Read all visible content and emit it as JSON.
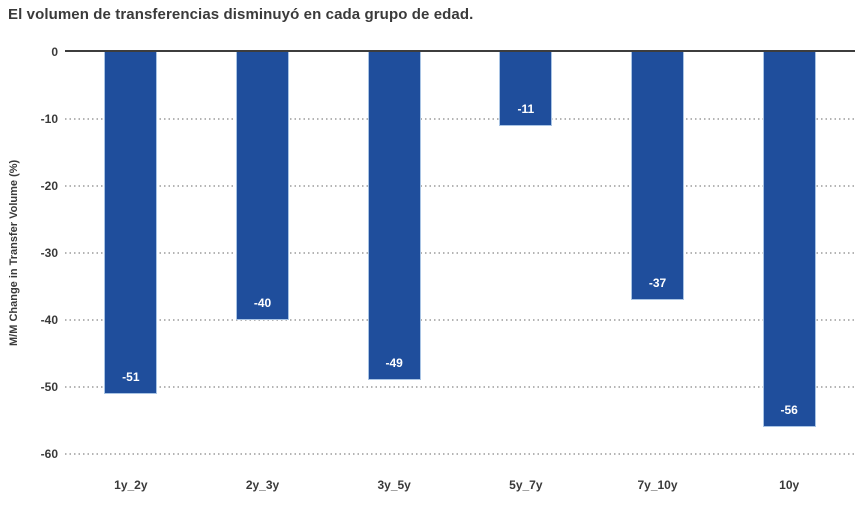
{
  "title": "El volumen de transferencias disminuyó en cada grupo de edad.",
  "chart_data": {
    "type": "bar",
    "title": "El volumen de transferencias disminuyó en cada grupo de edad.",
    "categories": [
      "1y_2y",
      "2y_3y",
      "3y_5y",
      "5y_7y",
      "7y_10y",
      "10y"
    ],
    "values": [
      -51,
      -40,
      -49,
      -11,
      -37,
      -56
    ],
    "bar_value_labels": [
      "-51",
      "-40",
      "-49",
      "-11",
      "-37",
      "-56"
    ],
    "xlabel": "",
    "ylabel": "M/M Change in Transfer Volume (%)",
    "ylim": [
      -60,
      0
    ],
    "yticks": [
      0,
      -10,
      -20,
      -30,
      -40,
      -50,
      -60
    ],
    "ytick_labels": [
      "0",
      "-10",
      "-20",
      "-30",
      "-40",
      "-50",
      "-60"
    ],
    "grid": "horizontal-dotted",
    "legend": "none",
    "orientation": "vertical",
    "value_label_position": "inside-bottom"
  },
  "colors": {
    "bar_fill": "#1F4E9C",
    "bar_border": "#A9C4E4",
    "bar_value_label": "#FFFFFF",
    "grid_line": "#B4B4B4",
    "zero_line": "#3D3D3D",
    "text": "#3A3A3A",
    "background": "#FFFFFF"
  }
}
